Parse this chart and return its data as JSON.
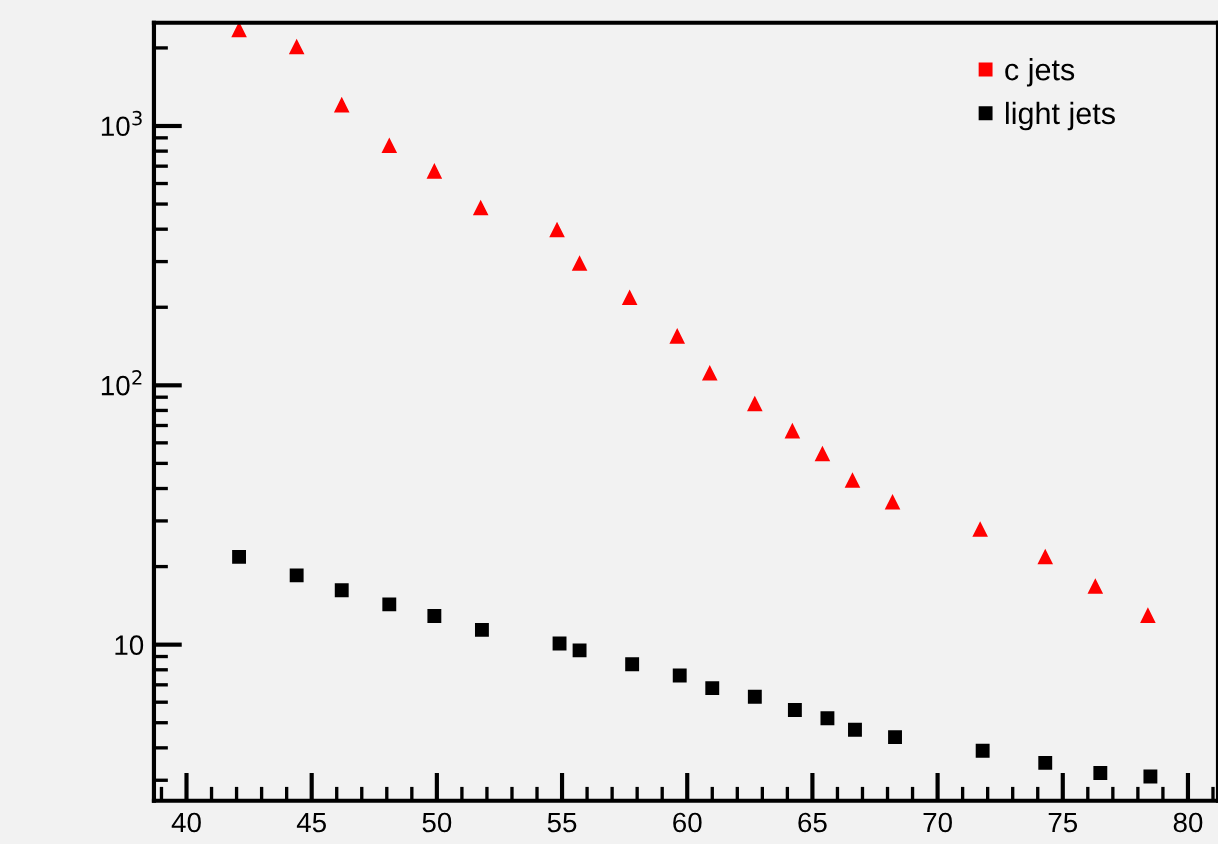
{
  "chart_data": {
    "type": "scatter",
    "log": "y",
    "legend": "top right",
    "grid": false,
    "xlim": [
      38.7,
      81.2
    ],
    "ylim": [
      2.5,
      2500
    ],
    "xticks": [
      40,
      45,
      50,
      55,
      60,
      65,
      70,
      75,
      80
    ],
    "yticks": [
      {
        "value": 10,
        "label": "10"
      },
      {
        "value": 100,
        "label": "10$^{2}$"
      },
      {
        "value": 1000,
        "label": "10$^{3}$"
      }
    ],
    "series": [
      {
        "name": "c jets",
        "color": "#ff0000",
        "marker": "triangle",
        "x": [
          42.1,
          44.4,
          46.2,
          48.1,
          49.9,
          51.75,
          54.8,
          55.7,
          57.7,
          59.6,
          60.9,
          62.7,
          64.2,
          65.4,
          66.6,
          68.2,
          71.7,
          74.3,
          76.3,
          78.4
        ],
        "values": [
          2340,
          2010,
          1200,
          836,
          666,
          481,
          396,
          294,
          217,
          154,
          111,
          84.5,
          66.4,
          54.2,
          42.8,
          35.3,
          27.7,
          21.7,
          16.7,
          12.9
        ]
      },
      {
        "name": "light jets",
        "color": "#000000",
        "marker": "square",
        "x": [
          42.1,
          44.4,
          46.2,
          48.1,
          49.9,
          51.8,
          54.9,
          55.7,
          57.8,
          59.7,
          61.0,
          62.7,
          64.3,
          65.6,
          66.7,
          68.3,
          71.8,
          74.3,
          76.5,
          78.5
        ],
        "values": [
          21.8,
          18.5,
          16.2,
          14.3,
          12.9,
          11.4,
          10.1,
          9.5,
          8.4,
          7.6,
          6.8,
          6.3,
          5.6,
          5.2,
          4.7,
          4.4,
          3.9,
          3.5,
          3.2,
          3.1
        ]
      }
    ]
  }
}
